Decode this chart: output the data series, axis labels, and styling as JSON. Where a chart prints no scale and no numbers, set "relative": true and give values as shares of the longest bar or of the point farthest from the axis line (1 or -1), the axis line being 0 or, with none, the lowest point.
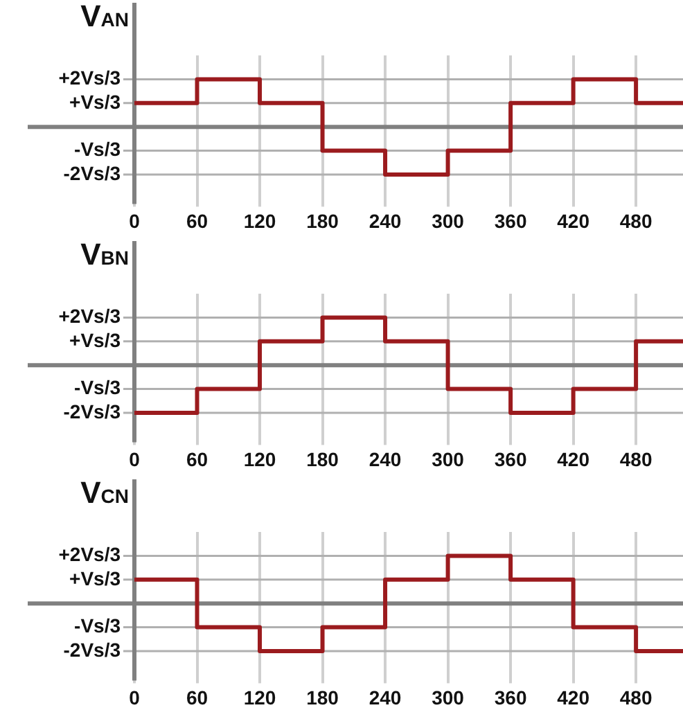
{
  "chart_data": [
    {
      "type": "step",
      "title": "V$_{AN}$",
      "relative": true,
      "x": [
        0,
        60,
        120,
        180,
        240,
        300,
        360,
        420,
        480,
        525
      ],
      "values": [
        0.5,
        1,
        0.5,
        -0.5,
        -1,
        -0.5,
        0.5,
        1,
        0.5,
        0.5
      ],
      "color": "#9b1b1e",
      "xlim": [
        0,
        525
      ],
      "xticks": [
        0,
        60,
        120,
        180,
        240,
        300,
        360,
        420,
        480
      ],
      "grid": "x",
      "ref_lines": [
        {
          "axis": "y",
          "value": 1,
          "label": "+2Vs/3",
          "color": "#b0b0b0"
        },
        {
          "axis": "y",
          "value": 0.5,
          "label": "+Vs/3",
          "color": "#b0b0b0"
        },
        {
          "axis": "y",
          "value": -0.5,
          "label": "-Vs/3",
          "color": "#b0b0b0"
        },
        {
          "axis": "y",
          "value": -1,
          "label": "-2Vs/3",
          "color": "#b0b0b0"
        }
      ]
    },
    {
      "type": "step",
      "title": "V$_{BN}$",
      "relative": true,
      "x": [
        0,
        60,
        120,
        180,
        240,
        300,
        360,
        420,
        480,
        525
      ],
      "values": [
        -1,
        -0.5,
        0.5,
        1,
        0.5,
        -0.5,
        -1,
        -0.5,
        0.5,
        0.5
      ],
      "color": "#9b1b1e",
      "xlim": [
        0,
        525
      ],
      "xticks": [
        0,
        60,
        120,
        180,
        240,
        300,
        360,
        420,
        480
      ],
      "grid": "x",
      "ref_lines": [
        {
          "axis": "y",
          "value": 1,
          "label": "+2Vs/3",
          "color": "#b0b0b0"
        },
        {
          "axis": "y",
          "value": 0.5,
          "label": "+Vs/3",
          "color": "#b0b0b0"
        },
        {
          "axis": "y",
          "value": -0.5,
          "label": "-Vs/3",
          "color": "#b0b0b0"
        },
        {
          "axis": "y",
          "value": -1,
          "label": "-2Vs/3",
          "color": "#b0b0b0"
        }
      ]
    },
    {
      "type": "step",
      "title": "V$_{CN}$",
      "relative": true,
      "x": [
        0,
        60,
        120,
        180,
        240,
        300,
        360,
        420,
        480,
        525
      ],
      "values": [
        0.5,
        -0.5,
        -1,
        -0.5,
        0.5,
        1,
        0.5,
        -0.5,
        -1,
        -1
      ],
      "color": "#9b1b1e",
      "xlim": [
        0,
        525
      ],
      "xticks": [
        0,
        60,
        120,
        180,
        240,
        300,
        360,
        420,
        480
      ],
      "grid": "x",
      "ref_lines": [
        {
          "axis": "y",
          "value": 1,
          "label": "+2Vs/3",
          "color": "#b0b0b0"
        },
        {
          "axis": "y",
          "value": 0.5,
          "label": "+Vs/3",
          "color": "#b0b0b0"
        },
        {
          "axis": "y",
          "value": -0.5,
          "label": "-Vs/3",
          "color": "#b0b0b0"
        },
        {
          "axis": "y",
          "value": -1,
          "label": "-2Vs/3",
          "color": "#b0b0b0"
        }
      ]
    }
  ]
}
